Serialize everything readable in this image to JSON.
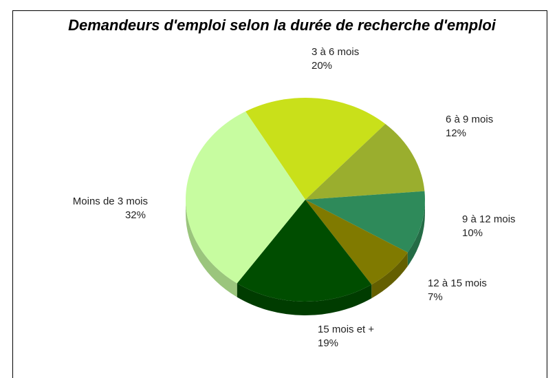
{
  "chart_data": {
    "type": "pie3d",
    "title": "Demandeurs d'emploi selon la durée de recherche d'emploi",
    "categories": [
      "3 à 6 mois",
      "6 à 9 mois",
      "9 à 12 mois",
      "12 à 15 mois",
      "15 mois et +",
      "Moins de 3 mois"
    ],
    "values": [
      20,
      12,
      10,
      7,
      19,
      32
    ],
    "value_labels": [
      "20%",
      "12%",
      "10%",
      "7%",
      "19%",
      "32%"
    ],
    "colors": [
      "#c9e01a",
      "#9aae2e",
      "#2e8a5a",
      "#807a00",
      "#004d00",
      "#c7fca0"
    ]
  }
}
